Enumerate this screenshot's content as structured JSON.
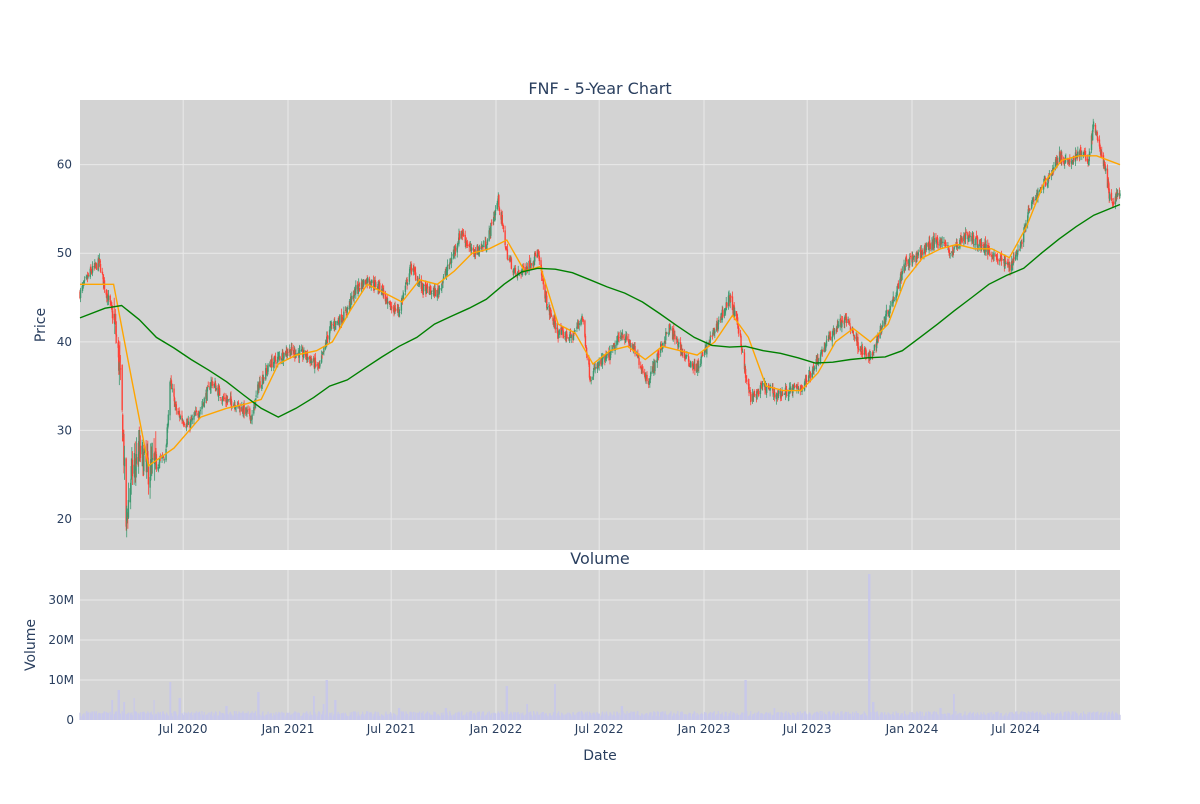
{
  "colors": {
    "plot_bg": "#d3d3d3",
    "grid": "#e9e9e9",
    "up": "#3d9970",
    "down": "#ff4136",
    "ma_short": "#ffa500",
    "ma_long": "#008000",
    "volume": "#c8c8ea",
    "text": "#2a3f5f"
  },
  "chart_data": [
    {
      "type": "candlestick",
      "title": "FNF - 5-Year Chart",
      "xlabel": "",
      "ylabel": "Price",
      "ylim": [
        16.5,
        67.3
      ],
      "x_range": [
        "2020-01-02",
        "2024-12-31"
      ],
      "yticks": [
        20,
        30,
        40,
        50,
        60
      ],
      "ohlc_close_trend": [
        [
          "2020-01-02",
          45.5
        ],
        [
          "2020-01-20",
          47.8
        ],
        [
          "2020-02-05",
          49.0
        ],
        [
          "2020-02-15",
          46.0
        ],
        [
          "2020-02-25",
          44.0
        ],
        [
          "2020-03-05",
          41.0
        ],
        [
          "2020-03-12",
          36.5
        ],
        [
          "2020-03-18",
          29.0
        ],
        [
          "2020-03-23",
          19.5
        ],
        [
          "2020-04-01",
          25.0
        ],
        [
          "2020-04-15",
          27.5
        ],
        [
          "2020-05-01",
          25.5
        ],
        [
          "2020-05-15",
          26.0
        ],
        [
          "2020-06-01",
          27.5
        ],
        [
          "2020-06-08",
          35.5
        ],
        [
          "2020-06-20",
          32.0
        ],
        [
          "2020-07-10",
          30.5
        ],
        [
          "2020-08-01",
          32.5
        ],
        [
          "2020-08-20",
          35.5
        ],
        [
          "2020-09-10",
          33.5
        ],
        [
          "2020-10-01",
          33.0
        ],
        [
          "2020-10-30",
          31.5
        ],
        [
          "2020-11-10",
          35.0
        ],
        [
          "2020-12-01",
          37.5
        ],
        [
          "2021-01-01",
          39.0
        ],
        [
          "2021-02-01",
          38.5
        ],
        [
          "2021-02-25",
          37.0
        ],
        [
          "2021-03-15",
          41.5
        ],
        [
          "2021-04-10",
          43.0
        ],
        [
          "2021-05-01",
          46.0
        ],
        [
          "2021-05-20",
          47.0
        ],
        [
          "2021-06-15",
          46.0
        ],
        [
          "2021-06-25",
          44.0
        ],
        [
          "2021-07-15",
          43.5
        ],
        [
          "2021-08-05",
          48.5
        ],
        [
          "2021-08-25",
          46.0
        ],
        [
          "2021-09-20",
          45.5
        ],
        [
          "2021-10-10",
          48.5
        ],
        [
          "2021-11-01",
          52.5
        ],
        [
          "2021-11-20",
          50.0
        ],
        [
          "2021-12-15",
          51.0
        ],
        [
          "2022-01-05",
          56.0
        ],
        [
          "2022-01-20",
          50.0
        ],
        [
          "2022-02-05",
          47.5
        ],
        [
          "2022-02-25",
          48.5
        ],
        [
          "2022-03-15",
          50.0
        ],
        [
          "2022-04-01",
          44.0
        ],
        [
          "2022-04-20",
          41.0
        ],
        [
          "2022-05-15",
          40.5
        ],
        [
          "2022-06-01",
          43.0
        ],
        [
          "2022-06-15",
          36.0
        ],
        [
          "2022-07-01",
          37.5
        ],
        [
          "2022-07-20",
          38.5
        ],
        [
          "2022-08-10",
          41.0
        ],
        [
          "2022-09-01",
          39.0
        ],
        [
          "2022-09-25",
          35.5
        ],
        [
          "2022-10-15",
          39.0
        ],
        [
          "2022-11-01",
          41.5
        ],
        [
          "2022-11-15",
          40.0
        ],
        [
          "2022-12-01",
          38.0
        ],
        [
          "2022-12-20",
          37.0
        ],
        [
          "2023-01-10",
          40.0
        ],
        [
          "2023-02-01",
          43.0
        ],
        [
          "2023-02-15",
          45.0
        ],
        [
          "2023-03-05",
          41.0
        ],
        [
          "2023-03-15",
          36.0
        ],
        [
          "2023-03-25",
          33.5
        ],
        [
          "2023-04-15",
          35.0
        ],
        [
          "2023-05-10",
          34.0
        ],
        [
          "2023-06-01",
          34.5
        ],
        [
          "2023-06-25",
          35.0
        ],
        [
          "2023-07-15",
          37.5
        ],
        [
          "2023-08-05",
          40.0
        ],
        [
          "2023-08-25",
          42.0
        ],
        [
          "2023-09-10",
          42.5
        ],
        [
          "2023-09-30",
          39.5
        ],
        [
          "2023-10-20",
          38.0
        ],
        [
          "2023-11-10",
          42.0
        ],
        [
          "2023-11-30",
          45.0
        ],
        [
          "2023-12-20",
          49.0
        ],
        [
          "2024-01-10",
          49.5
        ],
        [
          "2024-02-01",
          51.0
        ],
        [
          "2024-02-20",
          51.5
        ],
        [
          "2024-03-10",
          50.0
        ],
        [
          "2024-04-01",
          52.0
        ],
        [
          "2024-04-20",
          51.5
        ],
        [
          "2024-05-10",
          50.5
        ],
        [
          "2024-05-30",
          49.5
        ],
        [
          "2024-06-20",
          48.5
        ],
        [
          "2024-07-10",
          51.0
        ],
        [
          "2024-07-25",
          55.0
        ],
        [
          "2024-08-15",
          57.5
        ],
        [
          "2024-09-01",
          59.0
        ],
        [
          "2024-09-15",
          61.0
        ],
        [
          "2024-10-01",
          60.0
        ],
        [
          "2024-10-20",
          61.5
        ],
        [
          "2024-11-05",
          60.5
        ],
        [
          "2024-11-15",
          64.5
        ],
        [
          "2024-11-25",
          62.0
        ],
        [
          "2024-12-05",
          59.5
        ],
        [
          "2024-12-15",
          55.5
        ],
        [
          "2024-12-31",
          57.0
        ]
      ],
      "series": [
        {
          "type": "line",
          "x": [
            "2020-01-02",
            "2020-02-15",
            "2020-03-01",
            "2020-04-01",
            "2020-05-01",
            "2020-06-15",
            "2020-08-01",
            "2020-09-15",
            "2020-10-20",
            "2020-11-15",
            "2020-12-15",
            "2021-01-15",
            "2021-02-20",
            "2021-03-20",
            "2021-04-20",
            "2021-05-20",
            "2021-06-20",
            "2021-07-20",
            "2021-08-20",
            "2021-09-20",
            "2021-10-20",
            "2021-11-20",
            "2021-12-20",
            "2022-01-20",
            "2022-02-20",
            "2022-03-20",
            "2022-04-20",
            "2022-05-20",
            "2022-06-20",
            "2022-07-20",
            "2022-08-20",
            "2022-09-20",
            "2022-10-20",
            "2022-11-20",
            "2022-12-20",
            "2023-01-20",
            "2023-02-20",
            "2023-03-20",
            "2023-04-20",
            "2023-05-20",
            "2023-06-20",
            "2023-07-20",
            "2023-08-20",
            "2023-09-20",
            "2023-10-20",
            "2023-11-20",
            "2023-12-20",
            "2024-01-20",
            "2024-02-20",
            "2024-03-20",
            "2024-04-20",
            "2024-05-20",
            "2024-06-20",
            "2024-07-20",
            "2024-08-20",
            "2024-09-20",
            "2024-10-20",
            "2024-11-20",
            "2024-12-31"
          ],
          "y": [
            46.5,
            46.5,
            46.5,
            36.0,
            26.0,
            28.0,
            31.5,
            32.5,
            33.0,
            33.5,
            37.5,
            38.5,
            39.0,
            40.0,
            43.5,
            46.5,
            45.5,
            44.5,
            47.0,
            46.5,
            48.0,
            50.0,
            50.5,
            51.5,
            48.0,
            48.5,
            42.0,
            41.0,
            37.5,
            39.0,
            39.5,
            38.0,
            39.5,
            39.0,
            38.5,
            40.0,
            43.0,
            40.5,
            35.0,
            34.5,
            34.5,
            36.5,
            40.0,
            41.5,
            40.0,
            42.0,
            47.0,
            49.5,
            50.5,
            51.0,
            50.5,
            50.5,
            49.5,
            53.0,
            58.0,
            60.5,
            61.0,
            61.0,
            60.0
          ]
        },
        {
          "type": "line",
          "x": [
            "2020-01-02",
            "2020-02-15",
            "2020-03-15",
            "2020-04-15",
            "2020-05-15",
            "2020-06-15",
            "2020-07-15",
            "2020-08-15",
            "2020-09-15",
            "2020-10-15",
            "2020-11-15",
            "2020-12-15",
            "2021-01-15",
            "2021-02-15",
            "2021-03-15",
            "2021-04-15",
            "2021-05-15",
            "2021-06-15",
            "2021-07-15",
            "2021-08-15",
            "2021-09-15",
            "2021-10-15",
            "2021-11-15",
            "2021-12-15",
            "2022-01-15",
            "2022-02-15",
            "2022-03-15",
            "2022-04-15",
            "2022-05-15",
            "2022-06-15",
            "2022-07-15",
            "2022-08-15",
            "2022-09-15",
            "2022-10-15",
            "2022-11-15",
            "2022-12-15",
            "2023-01-15",
            "2023-02-15",
            "2023-03-15",
            "2023-04-15",
            "2023-05-15",
            "2023-06-15",
            "2023-07-15",
            "2023-08-15",
            "2023-09-15",
            "2023-10-15",
            "2023-11-15",
            "2023-12-15",
            "2024-01-15",
            "2024-02-15",
            "2024-03-15",
            "2024-04-15",
            "2024-05-15",
            "2024-06-15",
            "2024-07-15",
            "2024-08-15",
            "2024-09-15",
            "2024-10-15",
            "2024-11-15",
            "2024-12-31"
          ],
          "y": [
            42.7,
            43.8,
            44.1,
            42.5,
            40.5,
            39.3,
            38.0,
            36.8,
            35.5,
            34.0,
            32.5,
            31.5,
            32.5,
            33.7,
            35.0,
            35.7,
            37.0,
            38.3,
            39.5,
            40.5,
            42.0,
            42.9,
            43.8,
            44.8,
            46.5,
            47.9,
            48.3,
            48.2,
            47.8,
            47.0,
            46.2,
            45.5,
            44.5,
            43.2,
            41.8,
            40.5,
            39.6,
            39.4,
            39.5,
            39.0,
            38.7,
            38.2,
            37.6,
            37.7,
            38.0,
            38.2,
            38.3,
            39.0,
            40.5,
            42.0,
            43.5,
            45.0,
            46.5,
            47.5,
            48.3,
            50.0,
            51.6,
            53.0,
            54.3,
            55.5
          ]
        }
      ]
    },
    {
      "type": "bar",
      "title": "Volume",
      "xlabel": "Date",
      "ylabel": "Volume",
      "ylim": [
        0,
        37500000
      ],
      "yticks": [
        0,
        10000000,
        20000000,
        30000000
      ],
      "ytick_labels": [
        "0",
        "10M",
        "20M",
        "30M"
      ],
      "xticks": [
        "2020-07-01",
        "2021-01-01",
        "2021-07-01",
        "2022-01-01",
        "2022-07-01",
        "2023-01-01",
        "2023-07-01",
        "2024-01-01",
        "2024-07-01"
      ],
      "xtick_labels": [
        "Jul 2020",
        "Jan 2021",
        "Jul 2021",
        "Jan 2022",
        "Jul 2022",
        "Jan 2023",
        "Jul 2023",
        "Jan 2024",
        "Jul 2024"
      ],
      "baseline": 1500000,
      "spikes": [
        [
          "2020-02-28",
          5000000
        ],
        [
          "2020-03-10",
          7500000
        ],
        [
          "2020-03-20",
          4500000
        ],
        [
          "2020-04-05",
          5500000
        ],
        [
          "2020-05-10",
          5000000
        ],
        [
          "2020-06-08",
          9500000
        ],
        [
          "2020-06-25",
          5500000
        ],
        [
          "2020-09-15",
          3500000
        ],
        [
          "2020-11-10",
          7000000
        ],
        [
          "2021-02-15",
          6000000
        ],
        [
          "2021-03-05",
          4000000
        ],
        [
          "2021-03-10",
          10000000
        ],
        [
          "2021-03-25",
          5000000
        ],
        [
          "2021-07-15",
          3000000
        ],
        [
          "2021-10-05",
          3000000
        ],
        [
          "2022-01-20",
          8500000
        ],
        [
          "2022-02-25",
          4000000
        ],
        [
          "2022-04-15",
          9000000
        ],
        [
          "2022-08-10",
          3500000
        ],
        [
          "2023-03-15",
          10000000
        ],
        [
          "2023-05-05",
          3000000
        ],
        [
          "2023-10-18",
          36500000
        ],
        [
          "2023-10-25",
          4500000
        ],
        [
          "2024-02-20",
          3000000
        ],
        [
          "2024-03-15",
          6500000
        ]
      ]
    }
  ]
}
